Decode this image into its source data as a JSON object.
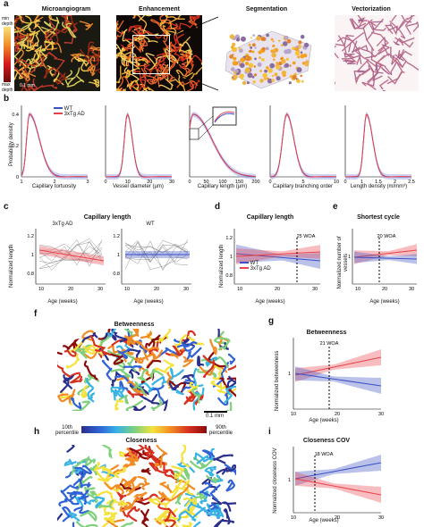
{
  "panel_a": {
    "letter": "a",
    "titles": [
      "Microangiogram",
      "Enhancement",
      "Segmentation",
      "Vectorization"
    ],
    "colorbar_top": "min depth",
    "colorbar_bottom": "max depth",
    "scale_bar": "0.1 mm"
  },
  "panel_b": {
    "letter": "b",
    "ylabel": "Probability density",
    "legend": [
      "WT",
      "3xTg AD"
    ],
    "colors": {
      "wt": "#3b4fc4",
      "ad": "#e8424a"
    },
    "plots": [
      {
        "xlabel": "Capillary tortuosity",
        "ticks_x": [
          "1",
          "2",
          "3"
        ],
        "ticks_y": [
          "0",
          "0.2",
          "0.4"
        ]
      },
      {
        "xlabel": "Vessel diameter (µm)",
        "ticks_x": [
          "0",
          "10",
          "20",
          "30"
        ]
      },
      {
        "xlabel": "Capillary length (µm)",
        "ticks_x": [
          "0",
          "50",
          "100",
          "150",
          "200"
        ]
      },
      {
        "xlabel": "Capillary branching order",
        "ticks_x": [
          "0",
          "5",
          "10"
        ]
      },
      {
        "xlabel": "Length density (m/mm³)",
        "ticks_x": [
          "0",
          "1",
          "1.5",
          "2",
          "2.5"
        ]
      }
    ]
  },
  "panel_c": {
    "letter": "c",
    "title": "Capillary length",
    "sub_left": "3xTg AD",
    "sub_right": "WT",
    "ylabel": "Normalized length",
    "xlabel": "Age (weeks)",
    "ticks_x": [
      "10",
      "20",
      "30"
    ],
    "ticks_y": [
      "0.8",
      "1",
      "1.2"
    ]
  },
  "panel_d": {
    "letter": "d",
    "title": "Capillary length",
    "ylabel": "Normalized length",
    "xlabel": "Age (weeks)",
    "ticks_x": [
      "10",
      "20",
      "30"
    ],
    "ticks_y": [
      "0.8",
      "1",
      "1.2"
    ],
    "annotation": "25 WOA",
    "legend": [
      "WT",
      "3xTg AD"
    ]
  },
  "panel_e": {
    "letter": "e",
    "title": "Shortest cycle",
    "ylabel": "Normalized number of vessels",
    "xlabel": "Age (weeks)",
    "ticks_x": [
      "10",
      "20",
      "30"
    ],
    "ticks_y": [
      "1"
    ],
    "annotation": "20 WOA"
  },
  "panel_f": {
    "letter": "f",
    "title": "Betweenness",
    "scale_bar": "0.1 mm",
    "colorbar_left": "10th percentile",
    "colorbar_right": "90th percentile"
  },
  "panel_g": {
    "letter": "g",
    "title": "Betweenness",
    "ylabel": "Normalized betweenness",
    "xlabel": "Age (weeks)",
    "ticks_x": [
      "10",
      "20",
      "30"
    ],
    "ticks_y": [
      "1"
    ],
    "annotation": "21 WOA"
  },
  "panel_h": {
    "letter": "h",
    "title": "Closeness"
  },
  "panel_i": {
    "letter": "i",
    "title": "Closeness COV",
    "ylabel": "Normalized closeness COV",
    "xlabel": "Age (weeks)",
    "ticks_x": [
      "10",
      "20",
      "30"
    ],
    "ticks_y": [
      "1"
    ],
    "annotation": "18 WOA"
  }
}
